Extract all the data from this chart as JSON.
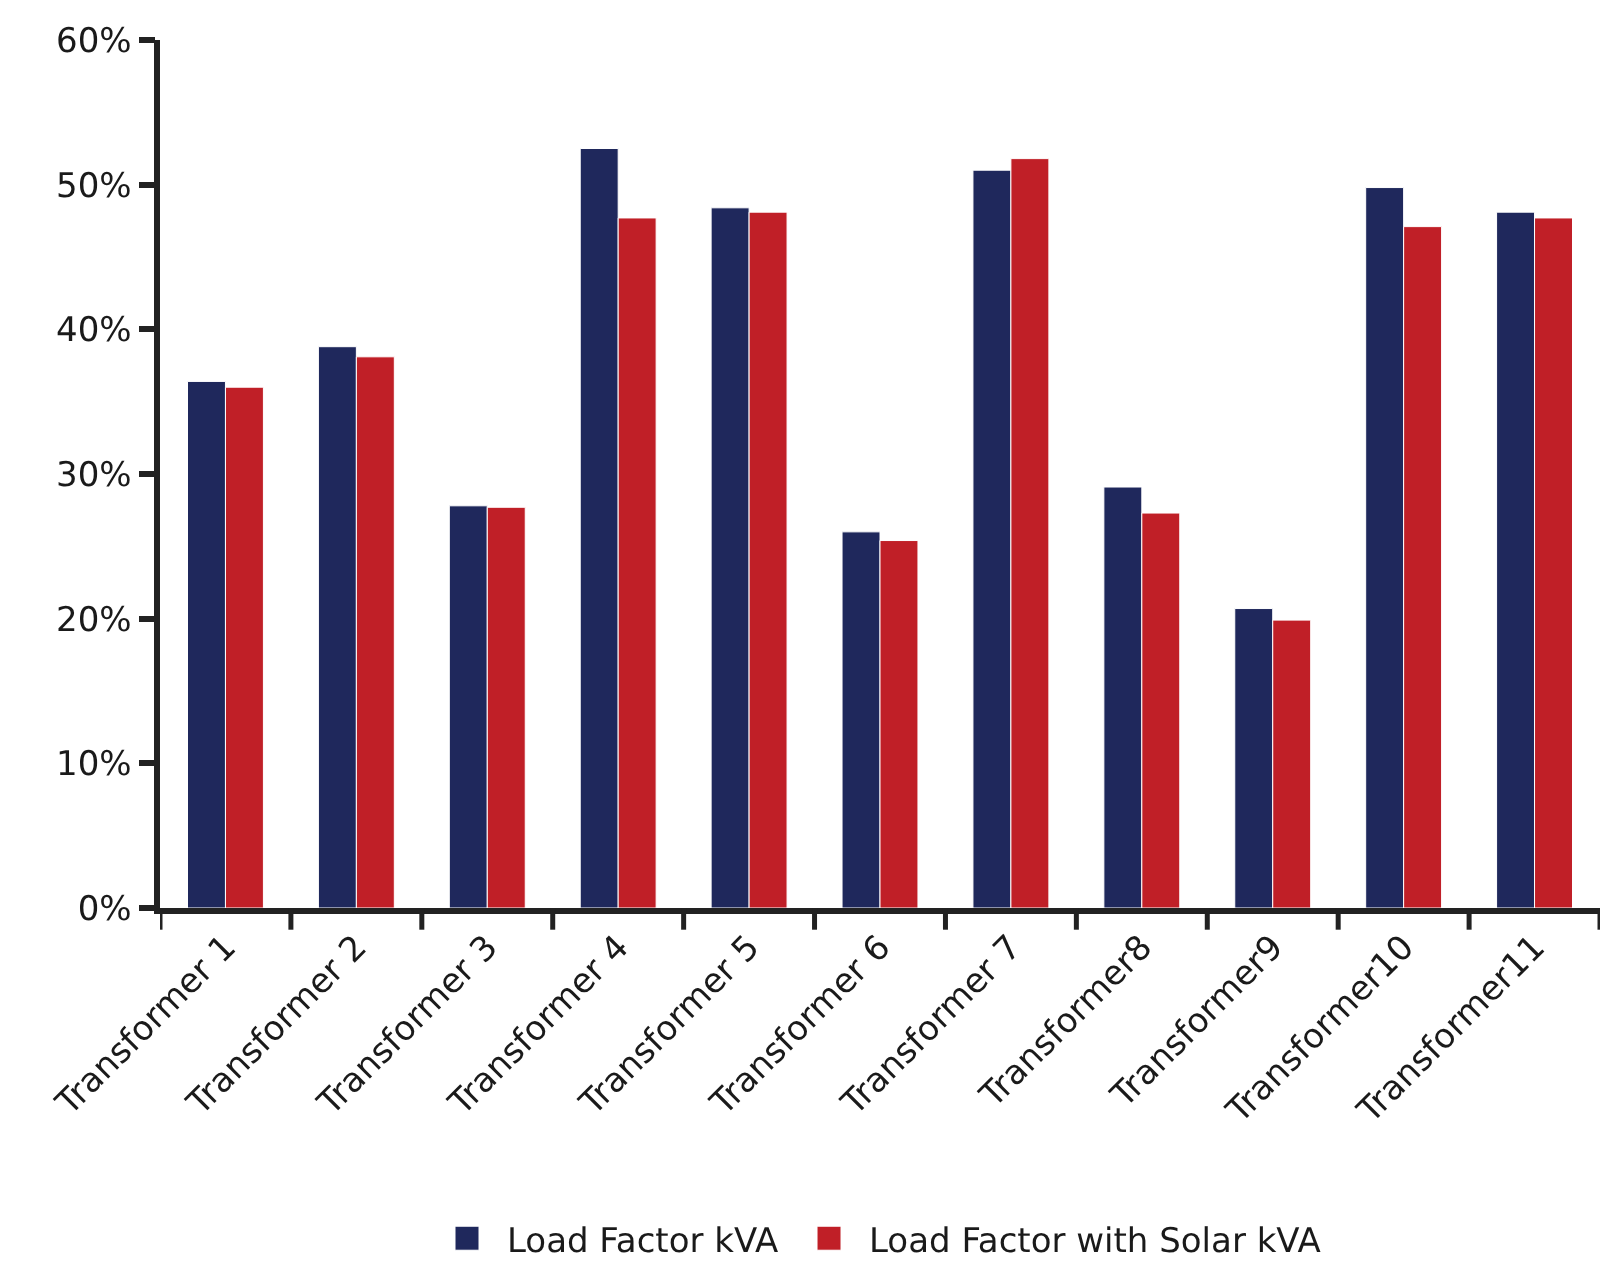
{
  "chart_data": {
    "type": "bar",
    "categories": [
      "Transformer 1",
      "Transformer 2",
      "Transformer 3",
      "Transformer 4",
      "Transformer 5",
      "Transformer 6",
      "Transformer 7",
      "Transformer8",
      "Transformer9",
      "Transformer10",
      "Transformer11"
    ],
    "series": [
      {
        "name": "Load Factor kVA",
        "color": "#1f285c",
        "values": [
          36.4,
          38.8,
          27.8,
          52.5,
          48.4,
          26.0,
          51.0,
          29.1,
          20.7,
          49.8,
          48.1
        ]
      },
      {
        "name": "Load Factor with Solar kVA",
        "color": "#c01f27",
        "values": [
          36.0,
          38.1,
          27.7,
          47.7,
          48.1,
          25.4,
          51.8,
          27.3,
          19.9,
          47.1,
          47.7
        ]
      }
    ],
    "ylim": [
      0,
      60
    ],
    "yticks": [
      {
        "value": 0,
        "label": "0%"
      },
      {
        "value": 10,
        "label": "10%"
      },
      {
        "value": 20,
        "label": "20%"
      },
      {
        "value": 30,
        "label": "30%"
      },
      {
        "value": 40,
        "label": "40%"
      },
      {
        "value": 50,
        "label": "50%"
      },
      {
        "value": 60,
        "label": "60%"
      }
    ],
    "grid": false,
    "legend": "bottom"
  }
}
